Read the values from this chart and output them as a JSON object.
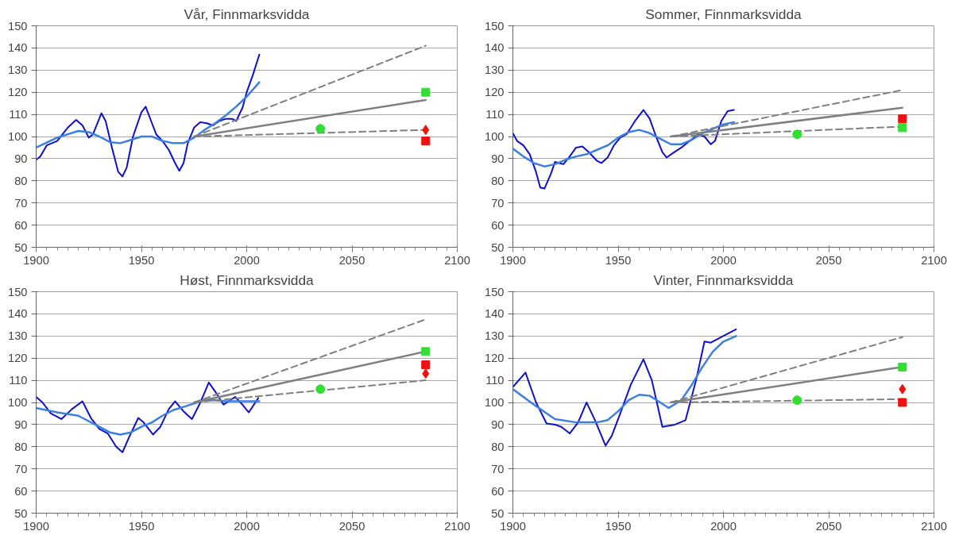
{
  "chart_data": [
    {
      "type": "line",
      "title": "Vår, Finnmarksvidda",
      "xlim": [
        1900,
        2100
      ],
      "xticks": [
        1900,
        1950,
        2000,
        2050,
        2100
      ],
      "ylim": [
        50,
        150
      ],
      "yticks": [
        50,
        60,
        70,
        80,
        90,
        100,
        110,
        120,
        130,
        140,
        150
      ],
      "grid": "y",
      "series": [
        {
          "type": "line",
          "color": "#1010c8",
          "line_style": "solid",
          "x": [
            1900,
            1902,
            1905,
            1910,
            1915,
            1919,
            1922,
            1925,
            1927,
            1931,
            1933,
            1936,
            1939,
            1941,
            1943,
            1946,
            1950,
            1952,
            1955,
            1957,
            1960,
            1963,
            1966,
            1968,
            1970,
            1972,
            1975,
            1978,
            1981,
            1984,
            1987,
            1990,
            1993,
            1995,
            1998,
            2000,
            2003,
            2006
          ],
          "values": [
            89.5,
            91,
            96,
            98,
            104,
            107.5,
            105,
            99.5,
            101,
            110.5,
            107,
            95,
            84,
            82,
            86,
            100,
            111,
            113.5,
            106,
            101,
            98,
            94,
            88,
            84.5,
            88,
            97,
            104,
            106.5,
            106,
            105,
            107,
            108,
            108,
            107,
            113,
            120,
            128,
            137
          ]
        },
        {
          "type": "line",
          "color": "#3d7fe0",
          "line_style": "solid",
          "x": [
            1900,
            1910,
            1920,
            1925,
            1930,
            1935,
            1940,
            1945,
            1950,
            1955,
            1960,
            1965,
            1970,
            1975,
            1980,
            1985,
            1990,
            1995,
            2000,
            2006
          ],
          "values": [
            95,
            99.5,
            102.5,
            102,
            100,
            97.5,
            97,
            98.5,
            100,
            100,
            98,
            97,
            97,
            99.5,
            103,
            106,
            109.5,
            113.5,
            118,
            124.5
          ]
        },
        {
          "type": "line",
          "color": "#808080",
          "line_style": "solid",
          "x": [
            1975,
            2085
          ],
          "values": [
            100,
            116.5
          ]
        },
        {
          "type": "line",
          "color": "#808080",
          "line_style": "dashed",
          "x": [
            1975,
            2085
          ],
          "values": [
            100,
            141
          ]
        },
        {
          "type": "line",
          "color": "#808080",
          "line_style": "dashed",
          "x": [
            1975,
            2085
          ],
          "values": [
            100,
            103
          ]
        },
        {
          "type": "scatter",
          "marker": "circle",
          "color": "#33dd33",
          "x": [
            2035
          ],
          "values": [
            103.5
          ]
        },
        {
          "type": "scatter",
          "marker": "square",
          "color": "#33dd33",
          "x": [
            2085
          ],
          "values": [
            120
          ]
        },
        {
          "type": "scatter",
          "marker": "diamond",
          "color": "#ee1111",
          "x": [
            2085
          ],
          "values": [
            103
          ]
        },
        {
          "type": "scatter",
          "marker": "square",
          "color": "#ee1111",
          "x": [
            2085
          ],
          "values": [
            98
          ]
        }
      ]
    },
    {
      "type": "line",
      "title": "Sommer, Finnmarksvidda",
      "xlim": [
        1900,
        2100
      ],
      "xticks": [
        1900,
        1950,
        2000,
        2050,
        2100
      ],
      "ylim": [
        50,
        150
      ],
      "yticks": [
        50,
        60,
        70,
        80,
        90,
        100,
        110,
        120,
        130,
        140,
        150
      ],
      "grid": "y",
      "series": [
        {
          "type": "line",
          "color": "#1010c8",
          "line_style": "solid",
          "x": [
            1900,
            1902,
            1905,
            1908,
            1911,
            1913,
            1915,
            1918,
            1920,
            1922,
            1924,
            1927,
            1930,
            1933,
            1936,
            1940,
            1942,
            1945,
            1948,
            1951,
            1954,
            1958,
            1962,
            1965,
            1968,
            1971,
            1973,
            1976,
            1980,
            1984,
            1988,
            1991,
            1994,
            1996,
            1999,
            2002,
            2005
          ],
          "values": [
            101.5,
            98,
            96,
            92,
            84,
            77,
            76.5,
            83,
            88.5,
            88,
            87.5,
            91,
            95,
            95.5,
            93,
            89,
            88,
            90.5,
            96,
            99.5,
            101,
            107,
            112,
            108,
            100,
            93,
            90.5,
            92.5,
            95,
            98,
            101,
            100,
            96.5,
            98,
            107,
            111.5,
            112
          ]
        },
        {
          "type": "line",
          "color": "#3d7fe0",
          "line_style": "solid",
          "x": [
            1900,
            1905,
            1910,
            1915,
            1920,
            1925,
            1930,
            1935,
            1940,
            1945,
            1950,
            1955,
            1960,
            1965,
            1970,
            1975,
            1980,
            1985,
            1990,
            1995,
            2000,
            2005
          ],
          "values": [
            94.5,
            91,
            88,
            86.5,
            87.5,
            89.5,
            91,
            92,
            94,
            96,
            99.5,
            102,
            103,
            101.5,
            99,
            96.5,
            96.5,
            98.5,
            101.5,
            103.5,
            105.5,
            106.5
          ]
        },
        {
          "type": "line",
          "color": "#808080",
          "line_style": "solid",
          "x": [
            1975,
            2085
          ],
          "values": [
            100,
            113
          ]
        },
        {
          "type": "line",
          "color": "#808080",
          "line_style": "dashed",
          "x": [
            1975,
            2085
          ],
          "values": [
            100,
            121
          ]
        },
        {
          "type": "line",
          "color": "#808080",
          "line_style": "dashed",
          "x": [
            1975,
            2085
          ],
          "values": [
            100,
            104.5
          ]
        },
        {
          "type": "scatter",
          "marker": "circle",
          "color": "#33dd33",
          "x": [
            2035
          ],
          "values": [
            101
          ]
        },
        {
          "type": "scatter",
          "marker": "square",
          "color": "#ee1111",
          "x": [
            2085
          ],
          "values": [
            108
          ]
        },
        {
          "type": "scatter",
          "marker": "square",
          "color": "#33dd33",
          "x": [
            2085
          ],
          "values": [
            104
          ]
        }
      ]
    },
    {
      "type": "line",
      "title": "Høst, Finnmarksvidda",
      "xlim": [
        1900,
        2100
      ],
      "xticks": [
        1900,
        1950,
        2000,
        2050,
        2100
      ],
      "ylim": [
        50,
        150
      ],
      "yticks": [
        50,
        60,
        70,
        80,
        90,
        100,
        110,
        120,
        130,
        140,
        150
      ],
      "grid": "y",
      "series": [
        {
          "type": "line",
          "color": "#1010c8",
          "line_style": "solid",
          "x": [
            1900,
            1903,
            1907,
            1912,
            1917,
            1922,
            1926,
            1930,
            1934,
            1938,
            1941,
            1944,
            1948.5,
            1951,
            1955.5,
            1959,
            1963,
            1966,
            1970,
            1974,
            1978,
            1982,
            1985,
            1989,
            1994.5,
            1998,
            2001,
            2005.5
          ],
          "values": [
            102.5,
            100,
            95,
            92.5,
            97,
            100.5,
            93,
            88,
            86,
            80,
            77.5,
            84,
            93,
            91,
            85.5,
            89,
            97,
            100.5,
            96,
            92.5,
            100,
            109,
            105,
            99,
            102.5,
            99,
            95.5,
            102
          ]
        },
        {
          "type": "line",
          "color": "#3d7fe0",
          "line_style": "solid",
          "x": [
            1900,
            1910,
            1920,
            1930,
            1935,
            1940,
            1945,
            1950,
            1955,
            1960,
            1965,
            1970,
            1975,
            1980,
            1985,
            1990,
            1995,
            2000,
            2006
          ],
          "values": [
            97.5,
            95.5,
            94,
            89,
            86.5,
            85.5,
            86.5,
            89,
            91,
            94,
            96.5,
            98,
            99.5,
            101,
            101,
            100.5,
            100.5,
            100.5,
            100.5
          ]
        },
        {
          "type": "line",
          "color": "#808080",
          "line_style": "solid",
          "x": [
            1975,
            2085
          ],
          "values": [
            100,
            123
          ]
        },
        {
          "type": "line",
          "color": "#808080",
          "line_style": "dashed",
          "x": [
            1975,
            2085
          ],
          "values": [
            100,
            137.5
          ]
        },
        {
          "type": "line",
          "color": "#808080",
          "line_style": "dashed",
          "x": [
            1975,
            2085
          ],
          "values": [
            100,
            110
          ]
        },
        {
          "type": "scatter",
          "marker": "circle",
          "color": "#33dd33",
          "x": [
            2035
          ],
          "values": [
            106
          ]
        },
        {
          "type": "scatter",
          "marker": "square",
          "color": "#33dd33",
          "x": [
            2085
          ],
          "values": [
            123
          ]
        },
        {
          "type": "scatter",
          "marker": "square",
          "color": "#ee1111",
          "x": [
            2085
          ],
          "values": [
            117
          ]
        },
        {
          "type": "scatter",
          "marker": "diamond",
          "color": "#ee1111",
          "x": [
            2085
          ],
          "values": [
            113
          ]
        }
      ]
    },
    {
      "type": "line",
      "title": "Vinter, Finnmarksvidda",
      "xlim": [
        1900,
        2100
      ],
      "xticks": [
        1900,
        1950,
        2000,
        2050,
        2100
      ],
      "ylim": [
        50,
        150
      ],
      "yticks": [
        50,
        60,
        70,
        80,
        90,
        100,
        110,
        120,
        130,
        140,
        150
      ],
      "grid": "y",
      "series": [
        {
          "type": "line",
          "color": "#1010c8",
          "line_style": "solid",
          "x": [
            1900,
            1906,
            1911,
            1916,
            1920,
            1923,
            1927,
            1931,
            1935,
            1939,
            1944,
            1947,
            1951,
            1956,
            1962,
            1966,
            1971,
            1977,
            1982,
            1987,
            1991,
            1994,
            1999,
            2006
          ],
          "values": [
            107,
            113.5,
            100,
            90.5,
            90,
            89,
            86,
            91,
            100,
            92,
            80.5,
            85,
            95,
            108,
            119.5,
            110,
            89,
            90,
            92,
            110,
            127.5,
            127,
            129.5,
            133
          ]
        },
        {
          "type": "line",
          "color": "#3d7fe0",
          "line_style": "solid",
          "x": [
            1900,
            1910,
            1920,
            1930,
            1940,
            1945,
            1950,
            1955,
            1960,
            1965,
            1970,
            1974,
            1980,
            1985,
            1990,
            1995,
            2000,
            2006
          ],
          "values": [
            106,
            99,
            92.5,
            91,
            91,
            92,
            96,
            101,
            103.5,
            103,
            100,
            97.5,
            101,
            108,
            116,
            123,
            127.5,
            130
          ]
        },
        {
          "type": "line",
          "color": "#808080",
          "line_style": "solid",
          "x": [
            1975,
            2085
          ],
          "values": [
            100,
            116
          ]
        },
        {
          "type": "line",
          "color": "#808080",
          "line_style": "dashed",
          "x": [
            1975,
            2085
          ],
          "values": [
            100,
            129.5
          ]
        },
        {
          "type": "line",
          "color": "#808080",
          "line_style": "dashed",
          "x": [
            1975,
            2085
          ],
          "values": [
            100,
            101.5
          ]
        },
        {
          "type": "scatter",
          "marker": "circle",
          "color": "#33dd33",
          "x": [
            2035
          ],
          "values": [
            101
          ]
        },
        {
          "type": "scatter",
          "marker": "square",
          "color": "#33dd33",
          "x": [
            2085
          ],
          "values": [
            116
          ]
        },
        {
          "type": "scatter",
          "marker": "diamond",
          "color": "#ee1111",
          "x": [
            2085
          ],
          "values": [
            106
          ]
        },
        {
          "type": "scatter",
          "marker": "square",
          "color": "#ee1111",
          "x": [
            2085
          ],
          "values": [
            100
          ]
        }
      ]
    }
  ]
}
